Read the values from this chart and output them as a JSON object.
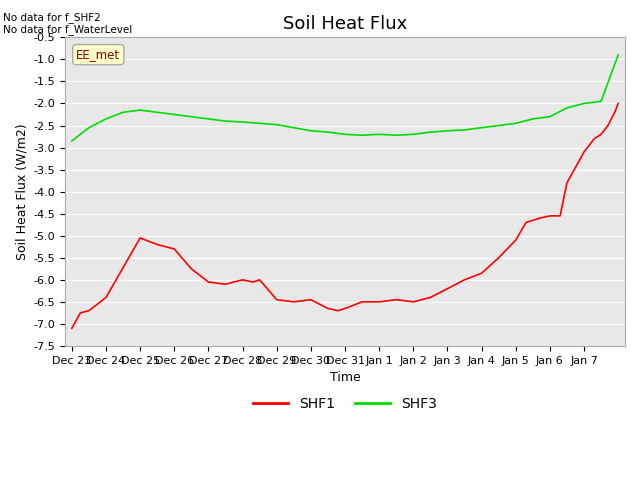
{
  "title": "Soil Heat Flux",
  "ylabel": "Soil Heat Flux (W/m2)",
  "xlabel": "Time",
  "ylim": [
    -7.5,
    -0.5
  ],
  "background_color": "#e8e8e8",
  "text_annotations": [
    "No data for f_SHF2",
    "No data for f_WaterLevel"
  ],
  "legend_label": "EE_met",
  "series": {
    "SHF1": {
      "color": "#ff0000",
      "points": [
        [
          0.0,
          -7.1
        ],
        [
          0.25,
          -6.75
        ],
        [
          0.5,
          -6.7
        ],
        [
          1.0,
          -6.4
        ],
        [
          2.0,
          -5.05
        ],
        [
          2.5,
          -5.2
        ],
        [
          3.0,
          -5.3
        ],
        [
          3.5,
          -5.75
        ],
        [
          4.0,
          -6.05
        ],
        [
          4.5,
          -6.1
        ],
        [
          5.0,
          -6.0
        ],
        [
          5.3,
          -6.05
        ],
        [
          5.5,
          -6.0
        ],
        [
          6.0,
          -6.45
        ],
        [
          6.5,
          -6.5
        ],
        [
          7.0,
          -6.45
        ],
        [
          7.5,
          -6.65
        ],
        [
          7.8,
          -6.7
        ],
        [
          8.0,
          -6.65
        ],
        [
          8.5,
          -6.5
        ],
        [
          9.0,
          -6.5
        ],
        [
          9.5,
          -6.45
        ],
        [
          10.0,
          -6.5
        ],
        [
          10.5,
          -6.4
        ],
        [
          11.0,
          -6.2
        ],
        [
          11.5,
          -6.0
        ],
        [
          12.0,
          -5.85
        ],
        [
          12.5,
          -5.5
        ],
        [
          13.0,
          -5.1
        ],
        [
          13.3,
          -4.7
        ],
        [
          13.5,
          -4.65
        ],
        [
          13.7,
          -4.6
        ],
        [
          14.0,
          -4.55
        ],
        [
          14.3,
          -4.55
        ],
        [
          14.5,
          -3.8
        ],
        [
          15.0,
          -3.1
        ],
        [
          15.3,
          -2.8
        ],
        [
          15.5,
          -2.7
        ],
        [
          15.7,
          -2.5
        ],
        [
          15.9,
          -2.2
        ],
        [
          16.0,
          -2.0
        ]
      ]
    },
    "SHF3": {
      "color": "#00dd00",
      "points": [
        [
          0.0,
          -2.85
        ],
        [
          0.5,
          -2.55
        ],
        [
          1.0,
          -2.35
        ],
        [
          1.5,
          -2.2
        ],
        [
          2.0,
          -2.15
        ],
        [
          2.5,
          -2.2
        ],
        [
          3.0,
          -2.25
        ],
        [
          3.5,
          -2.3
        ],
        [
          4.0,
          -2.35
        ],
        [
          4.5,
          -2.4
        ],
        [
          5.0,
          -2.42
        ],
        [
          5.5,
          -2.45
        ],
        [
          6.0,
          -2.48
        ],
        [
          6.5,
          -2.55
        ],
        [
          7.0,
          -2.62
        ],
        [
          7.5,
          -2.65
        ],
        [
          8.0,
          -2.7
        ],
        [
          8.5,
          -2.72
        ],
        [
          9.0,
          -2.7
        ],
        [
          9.5,
          -2.72
        ],
        [
          10.0,
          -2.7
        ],
        [
          10.5,
          -2.65
        ],
        [
          11.0,
          -2.62
        ],
        [
          11.5,
          -2.6
        ],
        [
          12.0,
          -2.55
        ],
        [
          12.5,
          -2.5
        ],
        [
          13.0,
          -2.45
        ],
        [
          13.5,
          -2.35
        ],
        [
          14.0,
          -2.3
        ],
        [
          14.5,
          -2.1
        ],
        [
          15.0,
          -2.0
        ],
        [
          15.5,
          -1.95
        ],
        [
          16.0,
          -0.9
        ]
      ]
    }
  },
  "xtick_labels": [
    "Dec 23",
    "Dec 24",
    "Dec 25",
    "Dec 26",
    "Dec 27",
    "Dec 28",
    "Dec 29",
    "Dec 30",
    "Dec 31",
    "Jan 1",
    "Jan 2",
    "Jan 3",
    "Jan 4",
    "Jan 5",
    "Jan 6",
    "Jan 7"
  ],
  "ytick_values": [
    -0.5,
    -1.0,
    -1.5,
    -2.0,
    -2.5,
    -3.0,
    -3.5,
    -4.0,
    -4.5,
    -5.0,
    -5.5,
    -6.0,
    -6.5,
    -7.0,
    -7.5
  ],
  "title_fontsize": 13,
  "axis_fontsize": 9,
  "tick_fontsize": 8
}
